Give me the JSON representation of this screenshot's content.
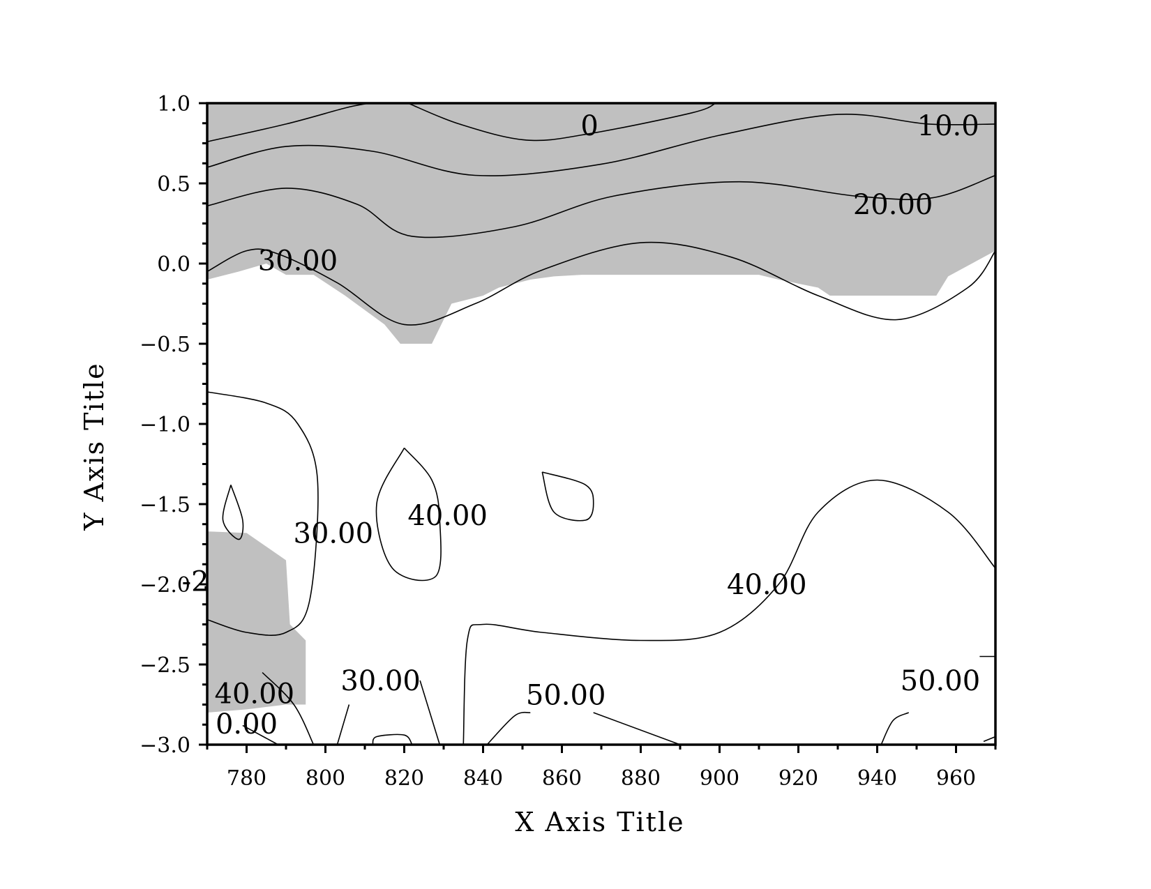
{
  "chart_data": {
    "type": "contour",
    "title": "",
    "xlabel": "X Axis Title",
    "ylabel": "Y Axis Title",
    "xlim": [
      770,
      970
    ],
    "ylim": [
      -3.0,
      1.0
    ],
    "xticks": [
      780,
      800,
      820,
      840,
      860,
      880,
      900,
      920,
      940,
      960
    ],
    "yticks": [
      1.0,
      0.5,
      0.0,
      -0.5,
      -1.0,
      -1.5,
      -2.0,
      -2.5,
      -3.0
    ],
    "xtick_labels": [
      "780",
      "800",
      "820",
      "840",
      "860",
      "880",
      "900",
      "920",
      "940",
      "960"
    ],
    "ytick_labels": [
      "1.0",
      "0.5",
      "0.0",
      "−0.5",
      "−1.0",
      "−1.5",
      "−2.0",
      "−2.5",
      "−3.0"
    ],
    "fill_color": "#c0c0c0",
    "line_color": "#000000",
    "grid": false,
    "shaded_regions": [
      {
        "points": [
          [
            770,
            1.0
          ],
          [
            970,
            1.0
          ],
          [
            970,
            0.08
          ],
          [
            958,
            -0.08
          ],
          [
            955,
            -0.2
          ],
          [
            928,
            -0.2
          ],
          [
            925,
            -0.15
          ],
          [
            915,
            -0.1
          ],
          [
            910,
            -0.07
          ],
          [
            890,
            -0.07
          ],
          [
            875,
            -0.07
          ],
          [
            865,
            -0.07
          ],
          [
            858,
            -0.08
          ],
          [
            852,
            -0.1
          ],
          [
            844,
            -0.15
          ],
          [
            840,
            -0.2
          ],
          [
            832,
            -0.25
          ],
          [
            827,
            -0.5
          ],
          [
            819,
            -0.5
          ],
          [
            815,
            -0.38
          ],
          [
            805,
            -0.2
          ],
          [
            797,
            -0.07
          ],
          [
            790,
            -0.07
          ],
          [
            785,
            0.0
          ],
          [
            778,
            -0.05
          ],
          [
            770,
            -0.1
          ]
        ]
      },
      {
        "points": [
          [
            770,
            -1.67
          ],
          [
            780,
            -1.68
          ],
          [
            790,
            -1.85
          ],
          [
            791,
            -2.25
          ],
          [
            795,
            -2.35
          ],
          [
            795,
            -2.75
          ],
          [
            790,
            -2.75
          ],
          [
            780,
            -2.78
          ],
          [
            770,
            -2.8
          ]
        ]
      }
    ],
    "contours": [
      {
        "points": [
          [
            770,
            0.76
          ],
          [
            790,
            0.87
          ],
          [
            805,
            0.97
          ],
          [
            811,
            1.0
          ]
        ]
      },
      {
        "points": [
          [
            821,
            1.0
          ],
          [
            834,
            0.87
          ],
          [
            851,
            0.77
          ],
          [
            867,
            0.81
          ],
          [
            893,
            0.94
          ],
          [
            899,
            1.0
          ]
        ]
      },
      {
        "points": [
          [
            770,
            0.6
          ],
          [
            790,
            0.73
          ],
          [
            812,
            0.7
          ],
          [
            838,
            0.55
          ],
          [
            870,
            0.62
          ],
          [
            900,
            0.8
          ],
          [
            930,
            0.93
          ],
          [
            953,
            0.87
          ],
          [
            970,
            0.87
          ]
        ]
      },
      {
        "points": [
          [
            770,
            0.36
          ],
          [
            790,
            0.47
          ],
          [
            808,
            0.37
          ],
          [
            822,
            0.17
          ],
          [
            848,
            0.23
          ],
          [
            873,
            0.42
          ],
          [
            905,
            0.51
          ],
          [
            935,
            0.42
          ],
          [
            954,
            0.41
          ],
          [
            970,
            0.55
          ]
        ]
      },
      {
        "points": [
          [
            770,
            -0.05
          ],
          [
            780,
            0.08
          ],
          [
            788,
            0.06
          ],
          [
            803,
            -0.12
          ],
          [
            820,
            -0.38
          ],
          [
            838,
            -0.25
          ],
          [
            855,
            -0.04
          ],
          [
            880,
            0.13
          ],
          [
            903,
            0.04
          ],
          [
            925,
            -0.2
          ],
          [
            945,
            -0.35
          ],
          [
            963,
            -0.15
          ],
          [
            970,
            0.08
          ]
        ]
      },
      {
        "points": [
          [
            770,
            -0.8
          ],
          [
            785,
            -0.87
          ],
          [
            793,
            -1.0
          ],
          [
            798,
            -1.35
          ],
          [
            796,
            -2.1
          ],
          [
            790,
            -2.3
          ],
          [
            780,
            -2.3
          ],
          [
            770,
            -2.22
          ]
        ]
      },
      {
        "points": [
          [
            776,
            -1.38
          ],
          [
            779,
            -1.6
          ],
          [
            778,
            -1.72
          ],
          [
            774,
            -1.6
          ],
          [
            776,
            -1.38
          ]
        ]
      },
      {
        "points": [
          [
            820,
            -1.15
          ],
          [
            827,
            -1.35
          ],
          [
            829,
            -1.6
          ],
          [
            828,
            -1.95
          ],
          [
            817,
            -1.9
          ],
          [
            813,
            -1.5
          ],
          [
            820,
            -1.15
          ]
        ]
      },
      {
        "points": [
          [
            855,
            -1.3
          ],
          [
            866,
            -1.38
          ],
          [
            868,
            -1.5
          ],
          [
            866,
            -1.6
          ],
          [
            858,
            -1.55
          ],
          [
            855,
            -1.3
          ]
        ]
      },
      {
        "points": [
          [
            835,
            -3.0
          ],
          [
            836,
            -2.35
          ],
          [
            840,
            -2.25
          ],
          [
            855,
            -2.3
          ],
          [
            880,
            -2.35
          ],
          [
            900,
            -2.3
          ],
          [
            915,
            -2.0
          ],
          [
            925,
            -1.55
          ],
          [
            940,
            -1.35
          ],
          [
            958,
            -1.55
          ],
          [
            970,
            -1.9
          ]
        ]
      },
      {
        "points": [
          [
            784,
            -2.55
          ],
          [
            792,
            -2.75
          ],
          [
            797,
            -3.0
          ]
        ]
      },
      {
        "points": [
          [
            803,
            -3.0
          ],
          [
            806,
            -2.75
          ]
        ]
      },
      {
        "points": [
          [
            824,
            -2.6
          ],
          [
            829,
            -3.0
          ]
        ]
      },
      {
        "points": [
          [
            812,
            -3.0
          ],
          [
            813,
            -2.95
          ],
          [
            820,
            -2.94
          ],
          [
            822,
            -3.0
          ]
        ]
      },
      {
        "points": [
          [
            841,
            -3.0
          ],
          [
            848,
            -2.82
          ],
          [
            852,
            -2.8
          ]
        ]
      },
      {
        "points": [
          [
            868,
            -2.8
          ],
          [
            890,
            -3.0
          ]
        ]
      },
      {
        "points": [
          [
            941,
            -3.0
          ],
          [
            944,
            -2.85
          ],
          [
            948,
            -2.8
          ]
        ]
      },
      {
        "points": [
          [
            966,
            -2.45
          ],
          [
            970,
            -2.45
          ]
        ]
      },
      {
        "points": [
          [
            967,
            -2.98
          ],
          [
            970,
            -2.95
          ]
        ]
      },
      {
        "points": [
          [
            779,
            -2.88
          ],
          [
            788,
            -3.0
          ]
        ]
      }
    ],
    "labels": [
      {
        "text": "0",
        "x": 867,
        "y": 0.86
      },
      {
        "text": "10.0",
        "x": 958,
        "y": 0.86
      },
      {
        "text": "20.00",
        "x": 944,
        "y": 0.37
      },
      {
        "text": "30.00",
        "x": 793,
        "y": 0.02
      },
      {
        "text": "30.00",
        "x": 802,
        "y": -1.68
      },
      {
        "text": "40.00",
        "x": 831,
        "y": -1.57
      },
      {
        "text": "40.00",
        "x": 912,
        "y": -2.0
      },
      {
        "text": "30.00",
        "x": 814,
        "y": -2.6
      },
      {
        "text": "40.00",
        "x": 782,
        "y": -2.68
      },
      {
        "text": "0.00",
        "x": 780,
        "y": -2.87
      },
      {
        "text": "50.00",
        "x": 861,
        "y": -2.69
      },
      {
        "text": "50.00",
        "x": 956,
        "y": -2.6
      },
      {
        "text": "-2",
        "x": 767,
        "y": -1.98
      }
    ]
  }
}
